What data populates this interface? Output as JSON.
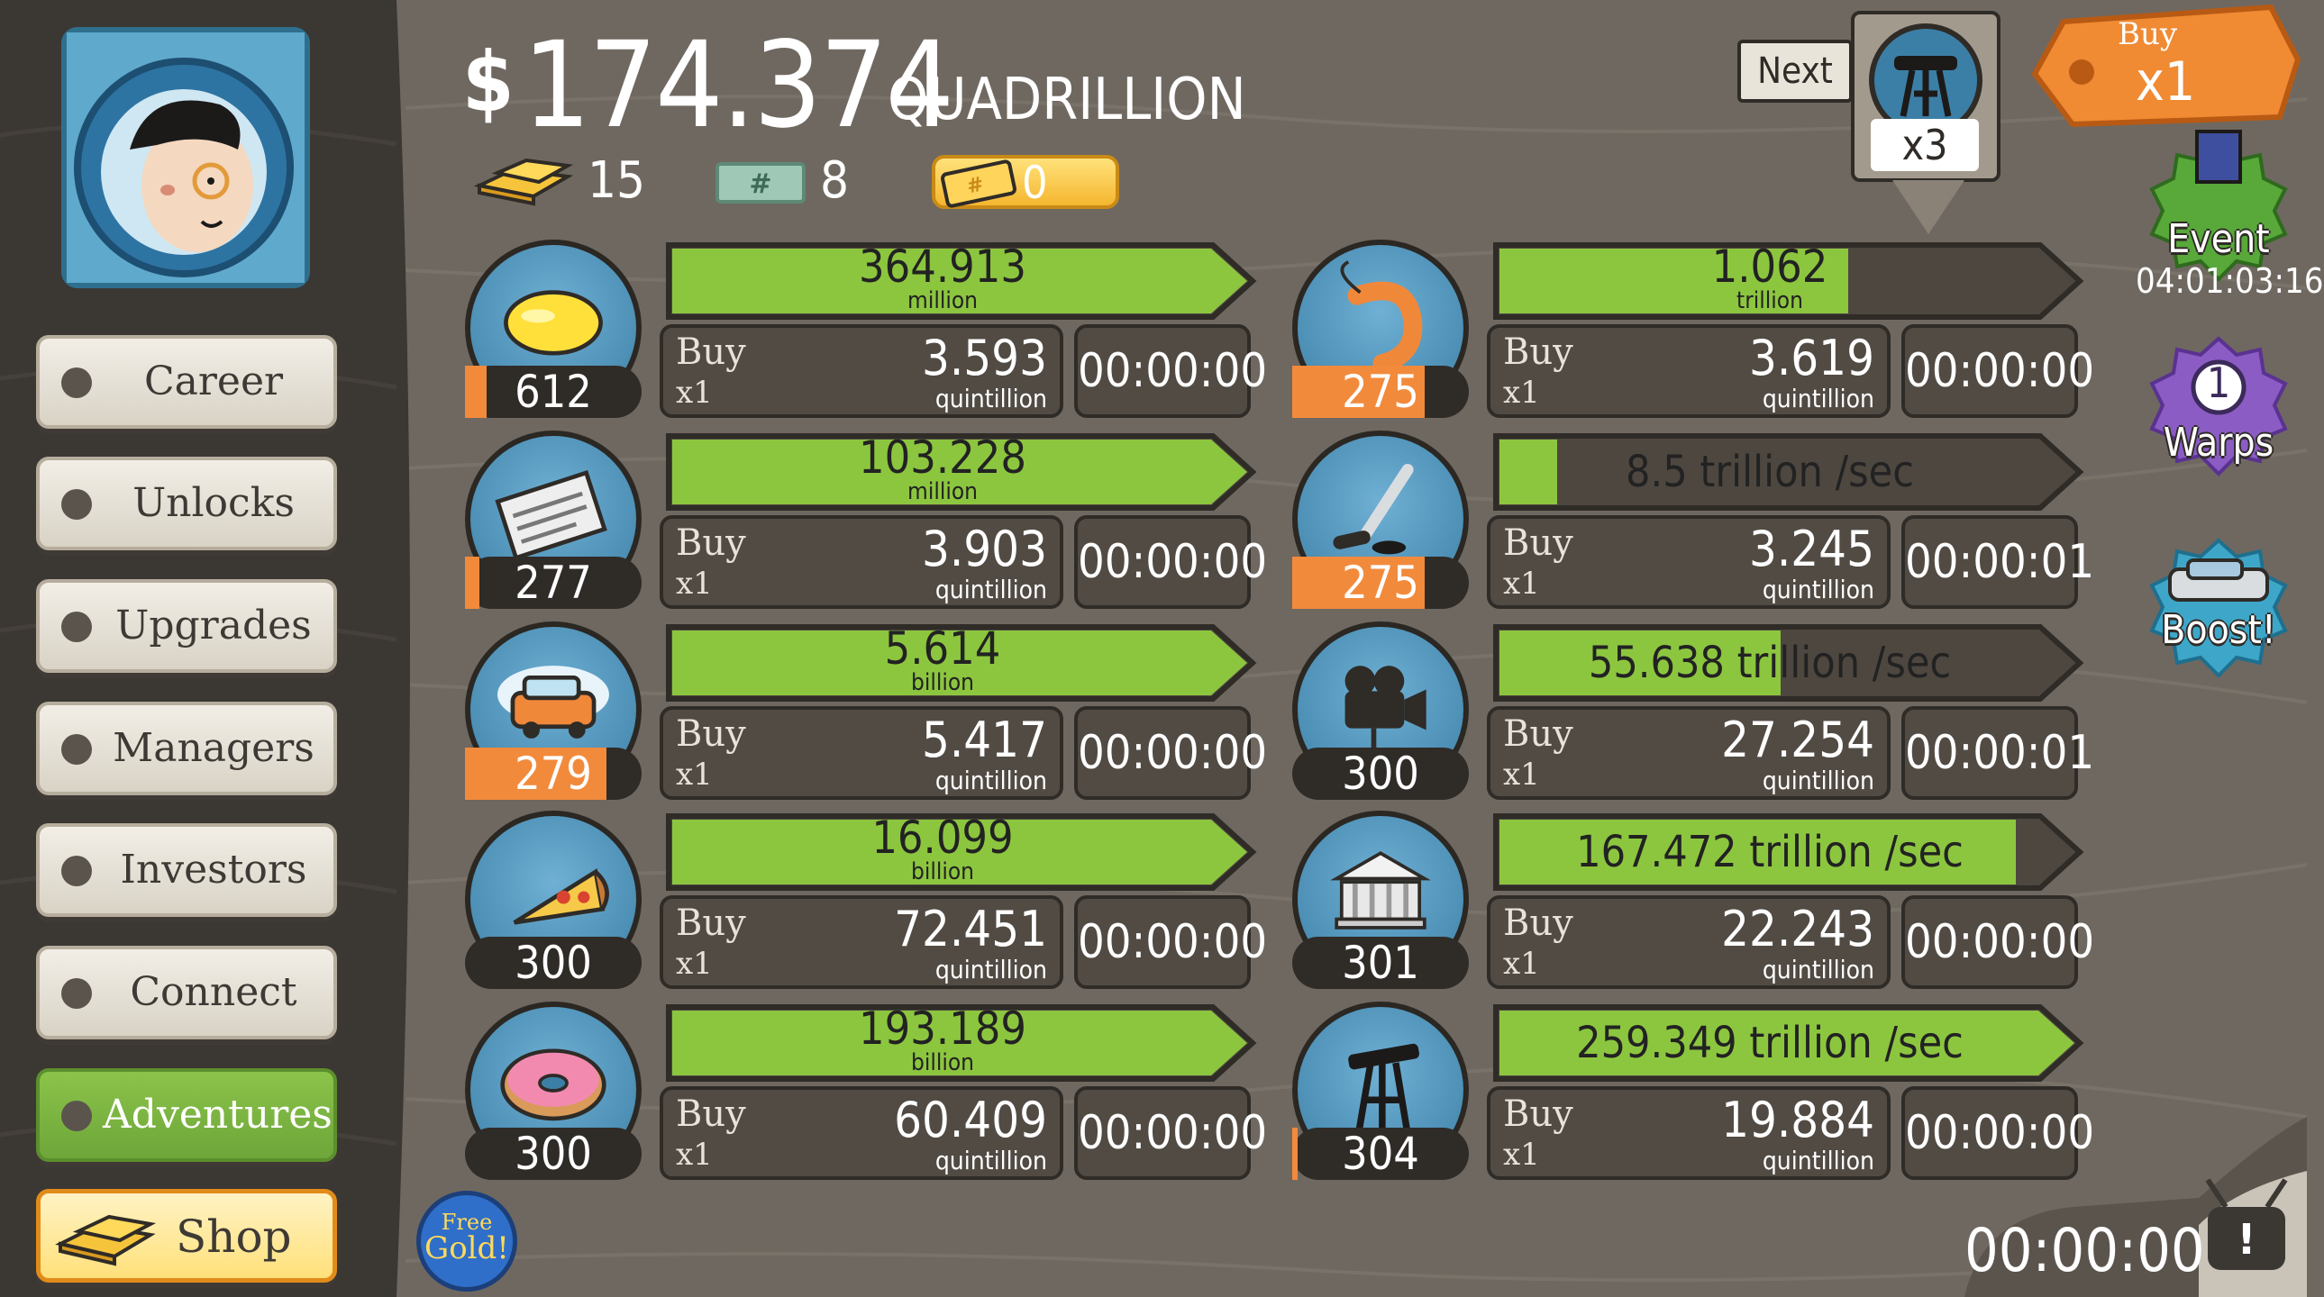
{
  "header": {
    "currency_symbol": "$",
    "money_amount": "174.374",
    "money_unit": "QUADRILLION",
    "gold_count": "15",
    "megabucks_count": "8",
    "ticket_count": "0"
  },
  "sidebar": {
    "items": [
      {
        "label": "Career"
      },
      {
        "label": "Unlocks"
      },
      {
        "label": "Upgrades"
      },
      {
        "label": "Managers"
      },
      {
        "label": "Investors"
      },
      {
        "label": "Connect"
      },
      {
        "label": "Adventures"
      }
    ],
    "shop_label": "Shop",
    "free_gold_label_1": "Free",
    "free_gold_label_2": "Gold!"
  },
  "businesses_left": [
    {
      "icon": "lemon-icon",
      "level": "612",
      "level_progress": 0.12,
      "progress": 1.0,
      "revenue": "364.913",
      "revenue_unit": "million",
      "buy_label": "Buy",
      "buy_mult": "x1",
      "cost": "3.593",
      "cost_unit": "quintillion",
      "timer": "00:00:00"
    },
    {
      "icon": "newspaper-icon",
      "level": "277",
      "level_progress": 0.08,
      "progress": 1.0,
      "revenue": "103.228",
      "revenue_unit": "million",
      "buy_label": "Buy",
      "buy_mult": "x1",
      "cost": "3.903",
      "cost_unit": "quintillion",
      "timer": "00:00:00"
    },
    {
      "icon": "car-wash-icon",
      "level": "279",
      "level_progress": 0.8,
      "progress": 1.0,
      "revenue": "5.614",
      "revenue_unit": "billion",
      "buy_label": "Buy",
      "buy_mult": "x1",
      "cost": "5.417",
      "cost_unit": "quintillion",
      "timer": "00:00:00"
    },
    {
      "icon": "pizza-icon",
      "level": "300",
      "level_progress": 0.0,
      "progress": 1.0,
      "revenue": "16.099",
      "revenue_unit": "billion",
      "buy_label": "Buy",
      "buy_mult": "x1",
      "cost": "72.451",
      "cost_unit": "quintillion",
      "timer": "00:00:00"
    },
    {
      "icon": "donut-icon",
      "level": "300",
      "level_progress": 0.0,
      "progress": 1.0,
      "revenue": "193.189",
      "revenue_unit": "billion",
      "buy_label": "Buy",
      "buy_mult": "x1",
      "cost": "60.409",
      "cost_unit": "quintillion",
      "timer": "00:00:00"
    }
  ],
  "businesses_right": [
    {
      "icon": "shrimp-icon",
      "level": "275",
      "level_progress": 0.75,
      "progress": 0.64,
      "revenue": "1.062",
      "revenue_unit": "trillion",
      "buy_label": "Buy",
      "buy_mult": "x1",
      "cost": "3.619",
      "cost_unit": "quintillion",
      "timer": "00:00:00"
    },
    {
      "icon": "hockey-icon",
      "level": "275",
      "level_progress": 0.75,
      "progress": 0.12,
      "revenue": "8.5 trillion /sec",
      "revenue_unit": "",
      "buy_label": "Buy",
      "buy_mult": "x1",
      "cost": "3.245",
      "cost_unit": "quintillion",
      "timer": "00:00:01"
    },
    {
      "icon": "movie-camera-icon",
      "level": "300",
      "level_progress": 0.0,
      "progress": 0.52,
      "revenue": "55.638 trillion /sec",
      "revenue_unit": "",
      "buy_label": "Buy",
      "buy_mult": "x1",
      "cost": "27.254",
      "cost_unit": "quintillion",
      "timer": "00:00:01"
    },
    {
      "icon": "bank-icon",
      "level": "301",
      "level_progress": 0.0,
      "progress": 0.94,
      "revenue": "167.472 trillion /sec",
      "revenue_unit": "",
      "buy_label": "Buy",
      "buy_mult": "x1",
      "cost": "22.243",
      "cost_unit": "quintillion",
      "timer": "00:00:00"
    },
    {
      "icon": "oil-rig-icon",
      "level": "304",
      "level_progress": 0.02,
      "progress": 1.0,
      "revenue": "259.349 trillion /sec",
      "revenue_unit": "",
      "buy_label": "Buy",
      "buy_mult": "x1",
      "cost": "19.884",
      "cost_unit": "quintillion",
      "timer": "00:00:00"
    }
  ],
  "next_unlock": {
    "label": "Next",
    "multiplier": "x3",
    "icon": "oil-rig-icon"
  },
  "buy_multiplier": {
    "label": "Buy",
    "value": "x1"
  },
  "event": {
    "label": "Event",
    "timer": "04:01:03:16"
  },
  "warps": {
    "count": "1",
    "label": "Warps"
  },
  "boost": {
    "label": "Boost!"
  },
  "tv_timer": "00:00:00",
  "colors": {
    "progress_green": "#8cc63f",
    "level_orange": "#f28a3c",
    "active_green": "#7cb342",
    "badge_green": "#58a83a",
    "badge_purple": "#8b5cc4",
    "badge_blue": "#3ea7c9"
  }
}
